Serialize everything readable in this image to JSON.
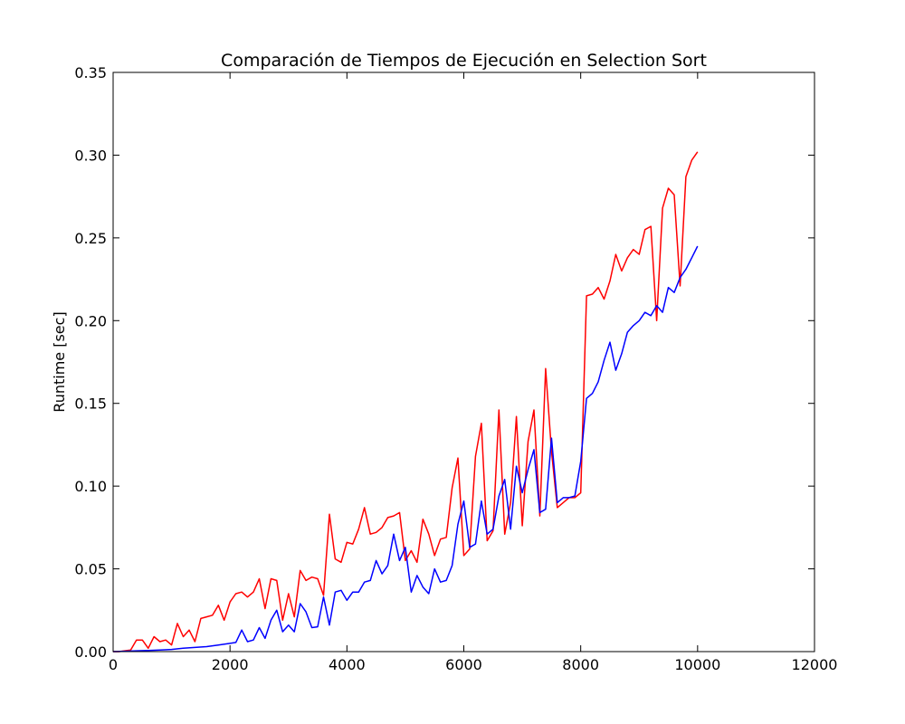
{
  "chart_data": {
    "type": "line",
    "title": "Comparación de Tiempos de Ejecución en Selection Sort",
    "xlabel": "",
    "ylabel": "Runtime [sec]",
    "xlim": [
      0,
      12000
    ],
    "ylim": [
      0,
      0.35
    ],
    "xticks": [
      0,
      2000,
      4000,
      6000,
      8000,
      10000,
      12000
    ],
    "xtick_labels": [
      "0",
      "2000",
      "4000",
      "6000",
      "8000",
      "10000",
      "12000"
    ],
    "yticks": [
      0,
      0.05,
      0.1,
      0.15,
      0.2,
      0.25,
      0.3,
      0.35
    ],
    "ytick_labels": [
      "0.00",
      "0.05",
      "0.10",
      "0.15",
      "0.20",
      "0.25",
      "0.30",
      "0.35"
    ],
    "grid": false,
    "legend": "none",
    "series": [
      {
        "color": "#ff0000",
        "points": [
          [
            0,
            0.0
          ],
          [
            100,
            0.0
          ],
          [
            200,
            0.0005
          ],
          [
            300,
            0.001
          ],
          [
            400,
            0.007
          ],
          [
            500,
            0.007
          ],
          [
            600,
            0.002
          ],
          [
            700,
            0.009
          ],
          [
            800,
            0.006
          ],
          [
            900,
            0.007
          ],
          [
            1000,
            0.004
          ],
          [
            1100,
            0.017
          ],
          [
            1200,
            0.009
          ],
          [
            1300,
            0.013
          ],
          [
            1400,
            0.006
          ],
          [
            1500,
            0.02
          ],
          [
            1600,
            0.021
          ],
          [
            1700,
            0.022
          ],
          [
            1800,
            0.028
          ],
          [
            1900,
            0.019
          ],
          [
            2000,
            0.03
          ],
          [
            2100,
            0.035
          ],
          [
            2200,
            0.036
          ],
          [
            2300,
            0.033
          ],
          [
            2400,
            0.036
          ],
          [
            2500,
            0.044
          ],
          [
            2600,
            0.026
          ],
          [
            2700,
            0.044
          ],
          [
            2800,
            0.043
          ],
          [
            2900,
            0.019
          ],
          [
            3000,
            0.035
          ],
          [
            3100,
            0.021
          ],
          [
            3200,
            0.049
          ],
          [
            3300,
            0.043
          ],
          [
            3400,
            0.045
          ],
          [
            3500,
            0.044
          ],
          [
            3600,
            0.034
          ],
          [
            3700,
            0.083
          ],
          [
            3800,
            0.056
          ],
          [
            3900,
            0.054
          ],
          [
            4000,
            0.066
          ],
          [
            4100,
            0.065
          ],
          [
            4200,
            0.074
          ],
          [
            4300,
            0.087
          ],
          [
            4400,
            0.071
          ],
          [
            4500,
            0.072
          ],
          [
            4600,
            0.075
          ],
          [
            4700,
            0.081
          ],
          [
            4800,
            0.082
          ],
          [
            4900,
            0.084
          ],
          [
            5000,
            0.055
          ],
          [
            5100,
            0.061
          ],
          [
            5200,
            0.054
          ],
          [
            5300,
            0.08
          ],
          [
            5400,
            0.071
          ],
          [
            5500,
            0.058
          ],
          [
            5600,
            0.068
          ],
          [
            5700,
            0.069
          ],
          [
            5800,
            0.099
          ],
          [
            5900,
            0.117
          ],
          [
            6000,
            0.058
          ],
          [
            6100,
            0.062
          ],
          [
            6200,
            0.118
          ],
          [
            6300,
            0.138
          ],
          [
            6400,
            0.067
          ],
          [
            6500,
            0.073
          ],
          [
            6600,
            0.146
          ],
          [
            6700,
            0.071
          ],
          [
            6800,
            0.09
          ],
          [
            6900,
            0.142
          ],
          [
            7000,
            0.076
          ],
          [
            7100,
            0.127
          ],
          [
            7200,
            0.146
          ],
          [
            7300,
            0.082
          ],
          [
            7400,
            0.171
          ],
          [
            7500,
            0.121
          ],
          [
            7600,
            0.087
          ],
          [
            7700,
            0.09
          ],
          [
            7800,
            0.093
          ],
          [
            7900,
            0.093
          ],
          [
            8000,
            0.096
          ],
          [
            8100,
            0.215
          ],
          [
            8200,
            0.216
          ],
          [
            8300,
            0.22
          ],
          [
            8400,
            0.213
          ],
          [
            8500,
            0.224
          ],
          [
            8600,
            0.24
          ],
          [
            8700,
            0.23
          ],
          [
            8800,
            0.238
          ],
          [
            8900,
            0.243
          ],
          [
            9000,
            0.24
          ],
          [
            9100,
            0.255
          ],
          [
            9200,
            0.257
          ],
          [
            9300,
            0.2
          ],
          [
            9400,
            0.268
          ],
          [
            9500,
            0.28
          ],
          [
            9600,
            0.276
          ],
          [
            9700,
            0.221
          ],
          [
            9800,
            0.287
          ],
          [
            9900,
            0.297
          ],
          [
            10000,
            0.302
          ]
        ]
      },
      {
        "color": "#0000ff",
        "points": [
          [
            0,
            0.0
          ],
          [
            200,
            0.0002
          ],
          [
            400,
            0.0005
          ],
          [
            600,
            0.0007
          ],
          [
            800,
            0.001
          ],
          [
            1000,
            0.0013
          ],
          [
            1200,
            0.002
          ],
          [
            1400,
            0.0025
          ],
          [
            1600,
            0.003
          ],
          [
            1800,
            0.004
          ],
          [
            2000,
            0.005
          ],
          [
            2100,
            0.0055
          ],
          [
            2200,
            0.013
          ],
          [
            2300,
            0.006
          ],
          [
            2400,
            0.007
          ],
          [
            2500,
            0.0145
          ],
          [
            2600,
            0.008
          ],
          [
            2700,
            0.019
          ],
          [
            2800,
            0.025
          ],
          [
            2900,
            0.012
          ],
          [
            3000,
            0.016
          ],
          [
            3100,
            0.012
          ],
          [
            3200,
            0.029
          ],
          [
            3300,
            0.024
          ],
          [
            3400,
            0.0145
          ],
          [
            3500,
            0.015
          ],
          [
            3600,
            0.033
          ],
          [
            3700,
            0.016
          ],
          [
            3800,
            0.036
          ],
          [
            3900,
            0.037
          ],
          [
            4000,
            0.031
          ],
          [
            4100,
            0.036
          ],
          [
            4200,
            0.036
          ],
          [
            4300,
            0.042
          ],
          [
            4400,
            0.043
          ],
          [
            4500,
            0.055
          ],
          [
            4600,
            0.047
          ],
          [
            4700,
            0.052
          ],
          [
            4800,
            0.071
          ],
          [
            4900,
            0.055
          ],
          [
            5000,
            0.063
          ],
          [
            5100,
            0.036
          ],
          [
            5200,
            0.046
          ],
          [
            5300,
            0.039
          ],
          [
            5400,
            0.035
          ],
          [
            5500,
            0.05
          ],
          [
            5600,
            0.042
          ],
          [
            5700,
            0.043
          ],
          [
            5800,
            0.052
          ],
          [
            5900,
            0.077
          ],
          [
            6000,
            0.091
          ],
          [
            6100,
            0.063
          ],
          [
            6200,
            0.065
          ],
          [
            6300,
            0.091
          ],
          [
            6400,
            0.071
          ],
          [
            6500,
            0.074
          ],
          [
            6600,
            0.094
          ],
          [
            6700,
            0.104
          ],
          [
            6800,
            0.074
          ],
          [
            6900,
            0.112
          ],
          [
            7000,
            0.096
          ],
          [
            7100,
            0.11
          ],
          [
            7200,
            0.122
          ],
          [
            7300,
            0.084
          ],
          [
            7400,
            0.086
          ],
          [
            7500,
            0.129
          ],
          [
            7600,
            0.09
          ],
          [
            7700,
            0.093
          ],
          [
            7800,
            0.093
          ],
          [
            7900,
            0.094
          ],
          [
            8000,
            0.115
          ],
          [
            8100,
            0.153
          ],
          [
            8200,
            0.156
          ],
          [
            8300,
            0.163
          ],
          [
            8400,
            0.176
          ],
          [
            8500,
            0.187
          ],
          [
            8600,
            0.17
          ],
          [
            8700,
            0.18
          ],
          [
            8800,
            0.193
          ],
          [
            8900,
            0.197
          ],
          [
            9000,
            0.2
          ],
          [
            9100,
            0.205
          ],
          [
            9200,
            0.203
          ],
          [
            9300,
            0.209
          ],
          [
            9400,
            0.205
          ],
          [
            9500,
            0.22
          ],
          [
            9600,
            0.217
          ],
          [
            9700,
            0.226
          ],
          [
            9800,
            0.231
          ],
          [
            9900,
            0.238
          ],
          [
            10000,
            0.245
          ]
        ]
      }
    ]
  }
}
